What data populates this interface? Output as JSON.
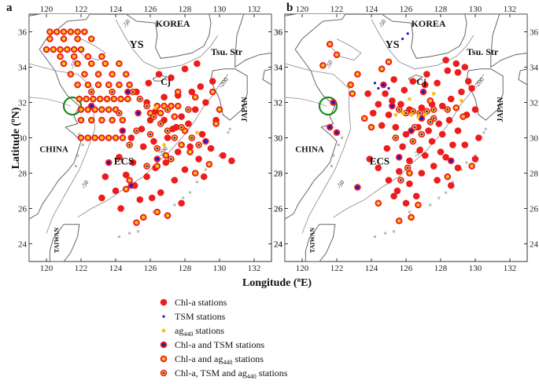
{
  "panels": [
    {
      "letter": "a",
      "contour_labels": [
        "-50",
        "-50",
        "-50",
        "-200",
        "-200"
      ]
    },
    {
      "letter": "b",
      "contour_labels": [
        "-50",
        "-50",
        "-50",
        "-200",
        "-200"
      ]
    }
  ],
  "x_ticks": [
    "120",
    "122",
    "124",
    "126",
    "128",
    "130",
    "132"
  ],
  "y_ticks": [
    "36",
    "34",
    "32",
    "30",
    "28",
    "26",
    "24"
  ],
  "x_title": {
    "main": "Longitude (",
    "sup": "o",
    "tail": "E)"
  },
  "y_title": {
    "main": "Latitude (",
    "sup": "o",
    "tail": "N)"
  },
  "places": {
    "korea": "KOREA",
    "ys": "YS",
    "tsu": "Tsu. Str",
    "cj": "Cj",
    "japan": "JAPAN",
    "china": "CHINA",
    "ecs": "ECS",
    "taiwan": "TAIWAN"
  },
  "legend": [
    {
      "key": "chl",
      "text": "Chl-a stations"
    },
    {
      "key": "tsm",
      "text": "TSM stations"
    },
    {
      "key": "ag",
      "text": "ag",
      "sub": "440",
      "tail": " stations"
    },
    {
      "key": "chl_tsm",
      "text": "Chl-a and TSM stations"
    },
    {
      "key": "chl_ag",
      "text": "Chl-a and ag",
      "sub": "440",
      "tail": " stations"
    },
    {
      "key": "all",
      "text": "Chl-a, TSM and ag",
      "sub": "440",
      "tail": " stations"
    }
  ],
  "colors": {
    "chl": "#ee1c1c",
    "tsm": "#1a1ad6",
    "ag": "#f5c518",
    "land": "#666666",
    "river_circle": "#1f8a1f"
  },
  "map": {
    "lon_range": [
      119,
      133
    ],
    "lat_range": [
      23,
      37
    ]
  },
  "stations_a": {
    "chl": [
      [
        125.2,
        32.6
      ],
      [
        125.8,
        32.0
      ],
      [
        126.3,
        31.5
      ],
      [
        126.8,
        31.0
      ],
      [
        127.3,
        30.5
      ],
      [
        127.8,
        31.2
      ],
      [
        128.2,
        30.8
      ],
      [
        128.6,
        31.6
      ],
      [
        129.0,
        30.2
      ],
      [
        128.3,
        29.5
      ],
      [
        127.6,
        29.2
      ],
      [
        126.9,
        28.6
      ],
      [
        126.3,
        28.3
      ],
      [
        125.8,
        27.8
      ],
      [
        125.1,
        27.3
      ],
      [
        124.6,
        27.9
      ],
      [
        124.0,
        27.0
      ],
      [
        123.2,
        26.6
      ],
      [
        123.4,
        27.8
      ],
      [
        124.3,
        26.0
      ],
      [
        125.4,
        26.5
      ],
      [
        126.6,
        26.9
      ],
      [
        127.4,
        27.6
      ],
      [
        128.0,
        28.2
      ],
      [
        128.8,
        28.8
      ],
      [
        129.5,
        29.4
      ],
      [
        129.8,
        31.0
      ],
      [
        129.2,
        32.0
      ],
      [
        128.4,
        32.6
      ],
      [
        127.6,
        32.4
      ],
      [
        126.8,
        32.3
      ],
      [
        126.0,
        31.0
      ],
      [
        125.5,
        30.5
      ],
      [
        124.9,
        30.0
      ],
      [
        125.6,
        29.5
      ],
      [
        126.2,
        29.8
      ],
      [
        127.0,
        30.0
      ],
      [
        127.5,
        30.6
      ],
      [
        128.9,
        32.9
      ],
      [
        129.6,
        33.2
      ],
      [
        130.2,
        29.0
      ],
      [
        130.7,
        28.7
      ],
      [
        129.1,
        27.8
      ],
      [
        127.8,
        26.3
      ],
      [
        126.1,
        26.6
      ],
      [
        125.0,
        28.6
      ],
      [
        124.2,
        28.9
      ],
      [
        125.9,
        33.1
      ],
      [
        126.5,
        33.6
      ],
      [
        127.2,
        33.4
      ],
      [
        128.0,
        33.9
      ],
      [
        128.7,
        34.2
      ]
    ],
    "chl_ag": [
      [
        120.2,
        36.0
      ],
      [
        120.6,
        36.0
      ],
      [
        121.0,
        36.0
      ],
      [
        121.4,
        36.0
      ],
      [
        121.8,
        36.0
      ],
      [
        122.2,
        36.0
      ],
      [
        120.2,
        35.6
      ],
      [
        121.0,
        35.6
      ],
      [
        121.8,
        35.6
      ],
      [
        122.6,
        35.6
      ],
      [
        120.0,
        35.0
      ],
      [
        120.4,
        35.0
      ],
      [
        120.8,
        35.0
      ],
      [
        121.2,
        35.0
      ],
      [
        121.6,
        35.0
      ],
      [
        122.0,
        35.0
      ],
      [
        120.8,
        34.6
      ],
      [
        121.6,
        34.6
      ],
      [
        122.4,
        34.6
      ],
      [
        123.2,
        34.6
      ],
      [
        121.0,
        34.2
      ],
      [
        121.8,
        34.2
      ],
      [
        122.6,
        34.2
      ],
      [
        123.4,
        34.2
      ],
      [
        124.2,
        34.2
      ],
      [
        121.4,
        33.6
      ],
      [
        122.2,
        33.6
      ],
      [
        123.0,
        33.6
      ],
      [
        123.8,
        33.6
      ],
      [
        124.6,
        33.6
      ],
      [
        121.8,
        33.0
      ],
      [
        122.4,
        33.0
      ],
      [
        123.0,
        33.0
      ],
      [
        123.6,
        33.0
      ],
      [
        124.2,
        33.0
      ],
      [
        124.8,
        33.0
      ],
      [
        121.9,
        32.2
      ],
      [
        122.3,
        32.2
      ],
      [
        122.7,
        32.2
      ],
      [
        123.1,
        32.2
      ],
      [
        123.5,
        32.2
      ],
      [
        123.9,
        32.2
      ],
      [
        124.3,
        32.2
      ],
      [
        124.7,
        32.2
      ],
      [
        122.0,
        31.6
      ],
      [
        122.4,
        31.6
      ],
      [
        122.8,
        31.6
      ],
      [
        123.2,
        31.6
      ],
      [
        123.6,
        31.6
      ],
      [
        124.0,
        31.6
      ],
      [
        122.0,
        31.0
      ],
      [
        122.6,
        31.0
      ],
      [
        123.2,
        31.0
      ],
      [
        123.8,
        31.0
      ],
      [
        124.4,
        31.0
      ],
      [
        122.0,
        30.0
      ],
      [
        122.4,
        30.0
      ],
      [
        122.8,
        30.0
      ],
      [
        123.2,
        30.0
      ],
      [
        123.6,
        30.0
      ],
      [
        124.0,
        30.0
      ],
      [
        124.4,
        30.0
      ],
      [
        126.4,
        31.8
      ],
      [
        126.8,
        31.8
      ],
      [
        127.2,
        31.8
      ],
      [
        127.6,
        31.8
      ],
      [
        126.0,
        31.4
      ],
      [
        126.6,
        31.4
      ],
      [
        127.4,
        31.2
      ],
      [
        128.0,
        30.4
      ],
      [
        127.8,
        29.6
      ],
      [
        126.9,
        29.0
      ],
      [
        126.4,
        28.4
      ],
      [
        124.8,
        27.6
      ],
      [
        124.6,
        27.1
      ],
      [
        125.2,
        25.2
      ],
      [
        125.6,
        25.5
      ],
      [
        126.4,
        25.8
      ],
      [
        127.0,
        25.6
      ],
      [
        128.6,
        28.0
      ],
      [
        128.3,
        29.2
      ],
      [
        129.4,
        28.5
      ],
      [
        129.8,
        30.8
      ],
      [
        129.6,
        32.6
      ],
      [
        130.0,
        31.6
      ],
      [
        128.6,
        32.3
      ],
      [
        127.6,
        32.6
      ]
    ],
    "all": [
      [
        125.0,
        32.6
      ],
      [
        125.4,
        32.2
      ],
      [
        125.8,
        31.8
      ],
      [
        126.2,
        31.2
      ],
      [
        126.6,
        30.8
      ],
      [
        127.0,
        30.4
      ],
      [
        127.4,
        30.0
      ],
      [
        127.8,
        30.6
      ],
      [
        128.2,
        31.6
      ],
      [
        128.4,
        30.0
      ],
      [
        127.2,
        28.8
      ],
      [
        125.8,
        28.4
      ],
      [
        125.2,
        30.4
      ],
      [
        124.8,
        29.6
      ],
      [
        126.0,
        30.2
      ],
      [
        126.4,
        29.4
      ],
      [
        128.8,
        29.6
      ],
      [
        127.0,
        31.6
      ],
      [
        124.2,
        31.4
      ],
      [
        123.8,
        32.6
      ],
      [
        122.6,
        32.6
      ]
    ],
    "chl_tsm": [
      [
        124.4,
        30.4
      ],
      [
        124.7,
        32.6
      ],
      [
        125.3,
        31.4
      ],
      [
        126.4,
        28.8
      ],
      [
        129.2,
        29.8
      ],
      [
        123.6,
        28.6
      ],
      [
        124.9,
        27.3
      ],
      [
        122.6,
        31.8
      ]
    ],
    "ag": [
      [
        126.8,
        29.6
      ],
      [
        128.7,
        30.3
      ],
      [
        126.3,
        31.7
      ]
    ]
  },
  "stations_b": {
    "chl": [
      [
        124.8,
        32.5
      ],
      [
        125.2,
        32.1
      ],
      [
        125.7,
        31.9
      ],
      [
        126.2,
        31.6
      ],
      [
        126.9,
        31.7
      ],
      [
        127.5,
        31.9
      ],
      [
        128.1,
        31.8
      ],
      [
        128.6,
        32.2
      ],
      [
        129.2,
        32.6
      ],
      [
        129.6,
        33.2
      ],
      [
        128.9,
        34.2
      ],
      [
        128.4,
        33.8
      ],
      [
        127.8,
        33.1
      ],
      [
        127.1,
        33.0
      ],
      [
        126.4,
        33.2
      ],
      [
        125.9,
        32.7
      ],
      [
        125.0,
        31.3
      ],
      [
        124.6,
        30.7
      ],
      [
        125.4,
        30.6
      ],
      [
        126.0,
        30.2
      ],
      [
        126.7,
        30.6
      ],
      [
        127.3,
        30.4
      ],
      [
        127.9,
        30.8
      ],
      [
        128.5,
        31.0
      ],
      [
        129.0,
        30.4
      ],
      [
        129.5,
        31.3
      ],
      [
        130.0,
        31.6
      ],
      [
        129.8,
        32.8
      ],
      [
        128.7,
        29.6
      ],
      [
        128.0,
        29.2
      ],
      [
        127.5,
        29.8
      ],
      [
        126.8,
        29.3
      ],
      [
        126.2,
        28.7
      ],
      [
        125.6,
        28.1
      ],
      [
        125.0,
        27.6
      ],
      [
        125.5,
        27.0
      ],
      [
        126.2,
        27.4
      ],
      [
        126.9,
        28.0
      ],
      [
        127.6,
        28.4
      ],
      [
        128.3,
        28.9
      ],
      [
        129.0,
        28.3
      ],
      [
        126.6,
        26.7
      ],
      [
        126.0,
        26.3
      ],
      [
        125.3,
        26.7
      ],
      [
        124.4,
        28.3
      ],
      [
        123.9,
        28.8
      ],
      [
        124.9,
        29.4
      ],
      [
        125.8,
        29.5
      ],
      [
        127.1,
        29.0
      ],
      [
        127.8,
        27.6
      ],
      [
        128.6,
        27.3
      ],
      [
        130.0,
        28.8
      ],
      [
        129.4,
        34.0
      ],
      [
        129.0,
        33.7
      ],
      [
        128.3,
        34.4
      ],
      [
        127.2,
        33.6
      ],
      [
        125.3,
        33.3
      ],
      [
        124.4,
        31.9
      ],
      [
        123.8,
        32.5
      ],
      [
        124.1,
        31.4
      ],
      [
        130.2,
        30.0
      ],
      [
        129.4,
        29.6
      ],
      [
        128.1,
        30.2
      ]
    ],
    "all": [
      [
        125.6,
        31.6
      ],
      [
        126.0,
        31.4
      ],
      [
        126.4,
        31.5
      ],
      [
        126.8,
        31.4
      ],
      [
        127.2,
        31.5
      ],
      [
        127.6,
        31.6
      ],
      [
        125.4,
        30.0
      ],
      [
        126.4,
        29.8
      ],
      [
        126.9,
        30.2
      ],
      [
        127.6,
        31.1
      ],
      [
        128.4,
        31.6
      ],
      [
        126.1,
        28.3
      ],
      [
        125.7,
        27.6
      ],
      [
        126.5,
        30.6
      ],
      [
        127.4,
        30.9
      ]
    ],
    "chl_tsm": [
      [
        121.6,
        30.6
      ],
      [
        122.0,
        30.3
      ],
      [
        121.8,
        32.0
      ],
      [
        123.2,
        27.2
      ],
      [
        125.6,
        28.9
      ],
      [
        126.3,
        30.4
      ],
      [
        126.9,
        31.1
      ],
      [
        125.2,
        31.8
      ],
      [
        128.6,
        28.7
      ],
      [
        127.0,
        32.6
      ],
      [
        124.7,
        33.0
      ]
    ],
    "chl_ag": [
      [
        124.6,
        33.9
      ],
      [
        125.0,
        34.3
      ],
      [
        123.2,
        33.6
      ],
      [
        122.9,
        32.5
      ],
      [
        123.6,
        31.1
      ],
      [
        124.0,
        30.6
      ],
      [
        127.4,
        32.1
      ],
      [
        128.9,
        31.7
      ],
      [
        129.3,
        31.2
      ],
      [
        128.4,
        27.8
      ],
      [
        126.7,
        26.2
      ],
      [
        126.3,
        25.5
      ],
      [
        124.4,
        26.3
      ],
      [
        125.6,
        25.3
      ],
      [
        122.0,
        34.7
      ],
      [
        121.6,
        35.3
      ],
      [
        121.2,
        34.1
      ],
      [
        122.8,
        33.0
      ],
      [
        126.2,
        28.0
      ],
      [
        129.8,
        28.4
      ]
    ],
    "tsm": [
      [
        124.4,
        32.8
      ],
      [
        125.0,
        32.8
      ],
      [
        125.8,
        35.6
      ],
      [
        126.1,
        35.9
      ],
      [
        124.2,
        33.1
      ]
    ],
    "ag": [
      [
        125.8,
        31.4
      ],
      [
        126.3,
        31.3
      ],
      [
        126.7,
        31.2
      ],
      [
        127.1,
        31.3
      ],
      [
        129.2,
        32.1
      ],
      [
        126.2,
        32.2
      ],
      [
        125.4,
        31.3
      ],
      [
        127.6,
        32.5
      ]
    ]
  }
}
